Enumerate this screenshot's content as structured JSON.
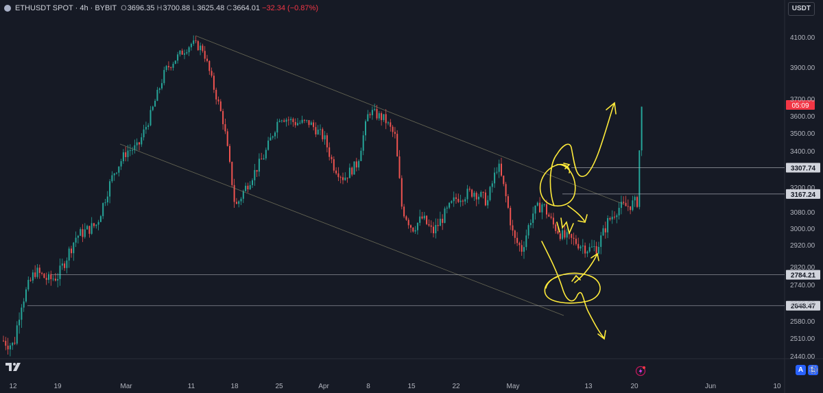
{
  "header": {
    "symbol": "ETHUSDT SPOT · 4h · BYBIT",
    "o_label": "O",
    "o_value": "3696.35",
    "h_label": "H",
    "h_value": "3700.88",
    "l_label": "L",
    "l_value": "3625.48",
    "c_label": "C",
    "c_value": "3664.01",
    "change": "−32.34 (−0.87%)"
  },
  "currency": "USDT",
  "scale_buttons": {
    "auto": "A",
    "log": "L"
  },
  "colors": {
    "background": "#161a25",
    "up": "#26a69a",
    "down": "#ef5350",
    "drawing": "#ffeb3b",
    "countdown": "#f23645"
  },
  "chart_data": {
    "type": "candlestick",
    "y_ticks": [
      "4100.00",
      "3900.00",
      "3700.00",
      "3600.00",
      "3500.00",
      "3400.00",
      "3200.00",
      "3080.00",
      "3000.00",
      "2920.00",
      "2820.00",
      "2740.00",
      "2660.00",
      "2580.00",
      "2510.00",
      "2440.00"
    ],
    "x_ticks": [
      "12",
      "19",
      "Mar",
      "11",
      "18",
      "25",
      "Apr",
      "8",
      "15",
      "22",
      "May",
      "13",
      "20",
      "Jun",
      "10"
    ],
    "price_labels": [
      {
        "value": 3307.74,
        "text": "3307.74"
      },
      {
        "value": 3167.24,
        "text": "3167.24"
      },
      {
        "value": 2784.21,
        "text": "2784.21"
      },
      {
        "value": 2648.47,
        "text": "2648.47"
      }
    ],
    "last_price_label": "05:09",
    "last_price": 3664.01,
    "anchors": [
      [
        "12",
        2480
      ],
      [
        "19",
        2780
      ],
      [
        "Mar",
        3400
      ],
      [
        "11",
        4060
      ],
      [
        "18",
        3100
      ],
      [
        "25",
        3600
      ],
      [
        "Apr",
        3470
      ],
      [
        "8",
        3630
      ],
      [
        "15",
        3000
      ],
      [
        "22",
        3150
      ],
      [
        "May",
        2950
      ],
      [
        "13",
        2900
      ],
      [
        "20",
        3670
      ]
    ]
  }
}
